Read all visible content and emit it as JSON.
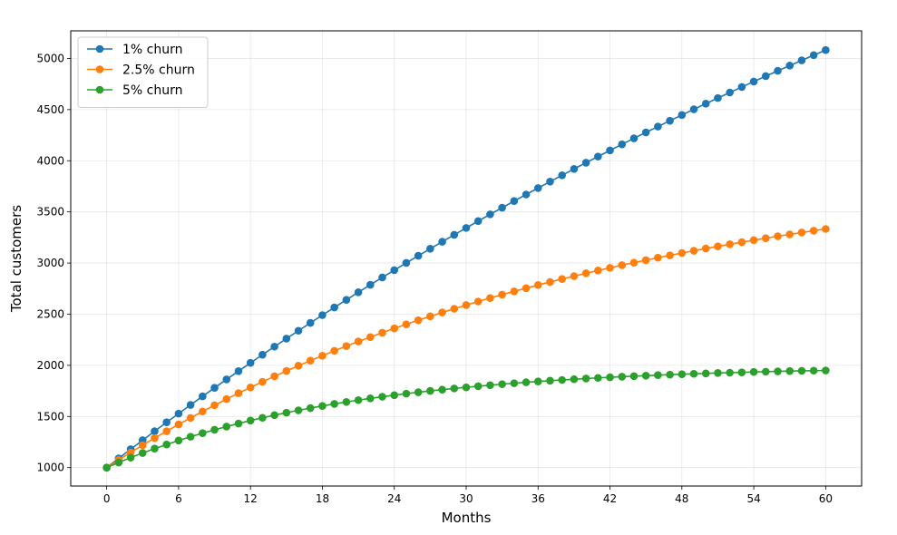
{
  "chart_data": {
    "type": "line",
    "title": "",
    "xlabel": "Months",
    "ylabel": "Total customers",
    "xlim": [
      -3,
      63
    ],
    "ylim": [
      820,
      5270
    ],
    "x_ticks": [
      0,
      6,
      12,
      18,
      24,
      30,
      36,
      42,
      48,
      54,
      60
    ],
    "y_ticks": [
      1000,
      1500,
      2000,
      2500,
      3000,
      3500,
      4000,
      4500,
      5000
    ],
    "grid": true,
    "legend_position": "top-left",
    "x": [
      0,
      1,
      2,
      3,
      4,
      5,
      6,
      7,
      8,
      9,
      10,
      11,
      12,
      13,
      14,
      15,
      16,
      17,
      18,
      19,
      20,
      21,
      22,
      23,
      24,
      25,
      26,
      27,
      28,
      29,
      30,
      31,
      32,
      33,
      34,
      35,
      36,
      37,
      38,
      39,
      40,
      41,
      42,
      43,
      44,
      45,
      46,
      47,
      48,
      49,
      50,
      51,
      52,
      53,
      54,
      55,
      56,
      57,
      58,
      59,
      60
    ],
    "series": [
      {
        "name": "1% churn",
        "color": "#1f77b4",
        "values": [
          1000,
          1090,
          1180,
          1268,
          1356,
          1443,
          1528,
          1613,
          1697,
          1780,
          1862,
          1943,
          2024,
          2104,
          2183,
          2261,
          2338,
          2415,
          2491,
          2566,
          2640,
          2714,
          2787,
          2859,
          2930,
          3001,
          3071,
          3140,
          3208,
          3276,
          3343,
          3410,
          3476,
          3541,
          3606,
          3670,
          3733,
          3796,
          3858,
          3920,
          3981,
          4041,
          4101,
          4160,
          4219,
          4277,
          4334,
          4391,
          4447,
          4503,
          4558,
          4613,
          4667,
          4721,
          4774,
          4827,
          4879,
          4930,
          4981,
          5032,
          5082
        ]
      },
      {
        "name": "2.5% churn",
        "color": "#ff7f0e",
        "values": [
          1000,
          1075,
          1148,
          1219,
          1289,
          1356,
          1422,
          1486,
          1549,
          1610,
          1670,
          1728,
          1784,
          1839,
          1893,
          1945,
          1996,
          2046,
          2094,
          2142,
          2188,
          2233,
          2276,
          2319,
          2361,
          2401,
          2441,
          2479,
          2517,
          2553,
          2589,
          2624,
          2658,
          2691,
          2723,
          2754,
          2785,
          2815,
          2844,
          2872,
          2900,
          2927,
          2953,
          2979,
          3004,
          3028,
          3052,
          3075,
          3098,
          3120,
          3142,
          3163,
          3184,
          3204,
          3224,
          3243,
          3262,
          3280,
          3298,
          3316,
          3333
        ]
      },
      {
        "name": "5% churn",
        "color": "#2ca02c",
        "values": [
          1000,
          1050,
          1098,
          1143,
          1186,
          1226,
          1265,
          1302,
          1337,
          1370,
          1401,
          1431,
          1460,
          1487,
          1513,
          1537,
          1560,
          1582,
          1603,
          1623,
          1642,
          1660,
          1677,
          1693,
          1708,
          1723,
          1737,
          1750,
          1762,
          1774,
          1785,
          1796,
          1806,
          1816,
          1825,
          1834,
          1842,
          1850,
          1857,
          1864,
          1871,
          1877,
          1883,
          1889,
          1894,
          1899,
          1904,
          1909,
          1913,
          1917,
          1921,
          1925,
          1928,
          1931,
          1935,
          1938,
          1941,
          1944,
          1946,
          1948,
          1950
        ]
      }
    ]
  }
}
